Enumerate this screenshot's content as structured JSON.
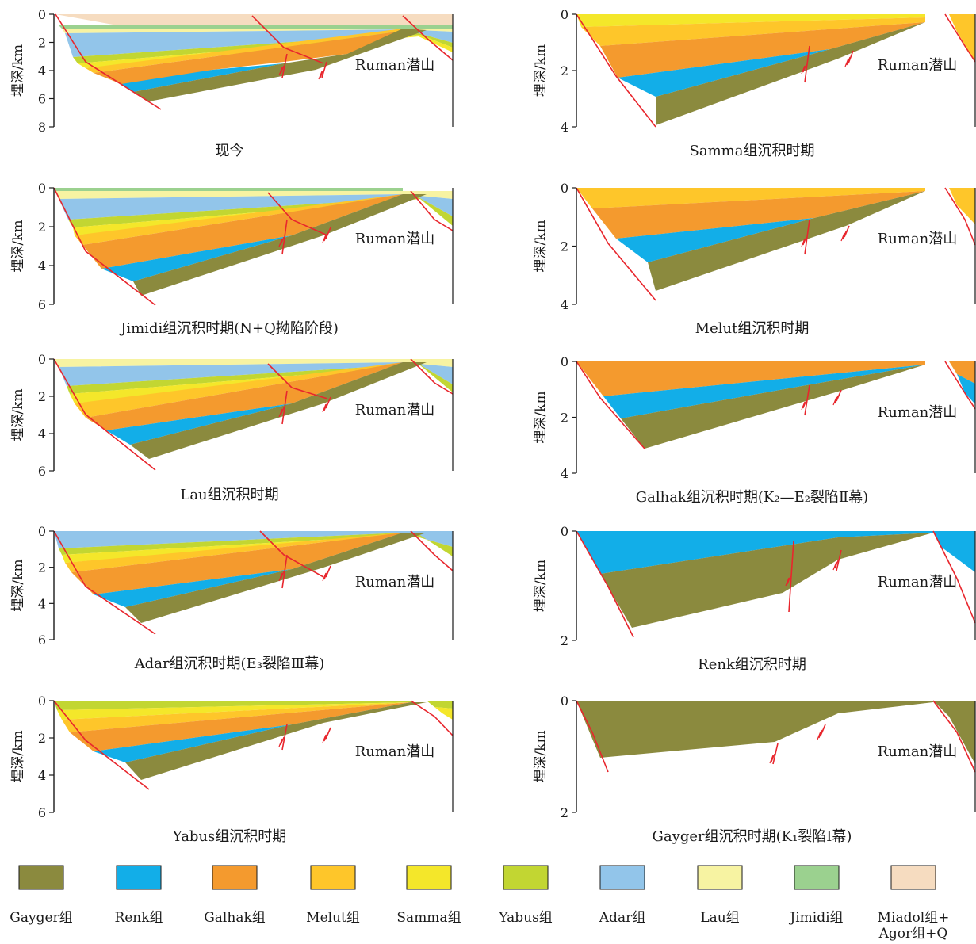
{
  "ylabel": "埋深/km",
  "mountain_label": "Ruman潜山",
  "panels": [
    {
      "caption": "现今",
      "ticks": [
        "0",
        "2",
        "4",
        "6",
        "8"
      ]
    },
    {
      "caption": "Samma组沉积时期",
      "ticks": [
        "0",
        "2",
        "4"
      ]
    },
    {
      "caption": "Jimidi组沉积时期(N+Q拗陷阶段)",
      "ticks": [
        "0",
        "2",
        "4",
        "6"
      ]
    },
    {
      "caption": "Melut组沉积时期",
      "ticks": [
        "0",
        "2",
        "4"
      ]
    },
    {
      "caption": "Lau组沉积时期",
      "ticks": [
        "0",
        "2",
        "4",
        "6"
      ]
    },
    {
      "caption": "Galhak组沉积时期(K₂—E₂裂陷Ⅱ幕)",
      "ticks": [
        "0",
        "2",
        "4"
      ]
    },
    {
      "caption": "Adar组沉积时期(E₃裂陷Ⅲ幕)",
      "ticks": [
        "0",
        "2",
        "4",
        "6"
      ]
    },
    {
      "caption": "Renk组沉积时期",
      "ticks": [
        "0",
        "2"
      ]
    },
    {
      "caption": "Yabus组沉积时期",
      "ticks": [
        "0",
        "2",
        "4",
        "6"
      ]
    },
    {
      "caption": "Gayger组沉积时期(K₁裂陷Ⅰ幕)",
      "ticks": [
        "0",
        "2"
      ]
    }
  ],
  "legend": [
    {
      "label": "Gayger组",
      "color": "#8b8a3e"
    },
    {
      "label": "Renk组",
      "color": "#12aee8"
    },
    {
      "label": "Galhak组",
      "color": "#f49a2e"
    },
    {
      "label": "Melut组",
      "color": "#fec62a"
    },
    {
      "label": "Samma组",
      "color": "#f4e72a"
    },
    {
      "label": "Yabus组",
      "color": "#c2d632"
    },
    {
      "label": "Adar组",
      "color": "#92c5ea"
    },
    {
      "label": "Lau组",
      "color": "#f7f3a2"
    },
    {
      "label": "Jimidi组",
      "color": "#9bd18f"
    },
    {
      "label": "Miadol组+\nAgor组+Q",
      "color": "#f6dcc0"
    }
  ]
}
